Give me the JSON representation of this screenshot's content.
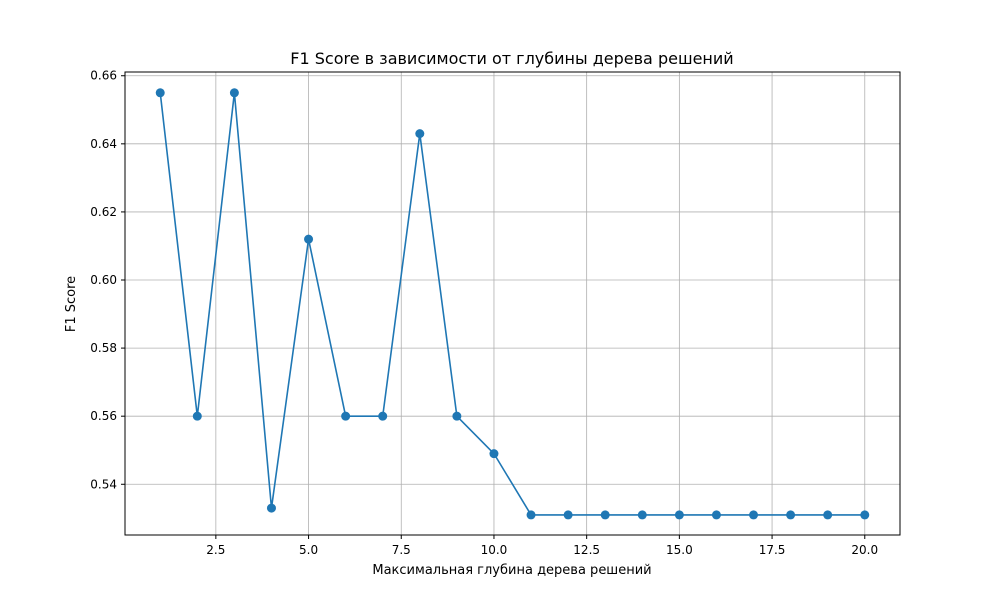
{
  "chart_data": {
    "type": "line",
    "title": "F1 Score в зависимости от глубины дерева решений",
    "xlabel": "Максимальная глубина дерева решений",
    "ylabel": "F1 Score",
    "xlim": [
      0.05,
      20.95
    ],
    "ylim": [
      0.5251,
      0.6611
    ],
    "x_ticks": [
      2.5,
      5.0,
      7.5,
      10.0,
      12.5,
      15.0,
      17.5,
      20.0
    ],
    "x_tick_labels": [
      "2.5",
      "5.0",
      "7.5",
      "10.0",
      "12.5",
      "15.0",
      "17.5",
      "20.0"
    ],
    "y_ticks": [
      0.54,
      0.56,
      0.58,
      0.6,
      0.62,
      0.64,
      0.66
    ],
    "y_tick_labels": [
      "0.54",
      "0.56",
      "0.58",
      "0.60",
      "0.62",
      "0.64",
      "0.66"
    ],
    "grid": true,
    "series": [
      {
        "color": "#1f77b4",
        "marker": "circle",
        "x": [
          1,
          2,
          3,
          4,
          5,
          6,
          7,
          8,
          9,
          10,
          11,
          12,
          13,
          14,
          15,
          16,
          17,
          18,
          19,
          20
        ],
        "y": [
          0.655,
          0.56,
          0.655,
          0.533,
          0.612,
          0.56,
          0.56,
          0.643,
          0.56,
          0.549,
          0.531,
          0.531,
          0.531,
          0.531,
          0.531,
          0.531,
          0.531,
          0.531,
          0.531,
          0.531
        ]
      }
    ]
  }
}
